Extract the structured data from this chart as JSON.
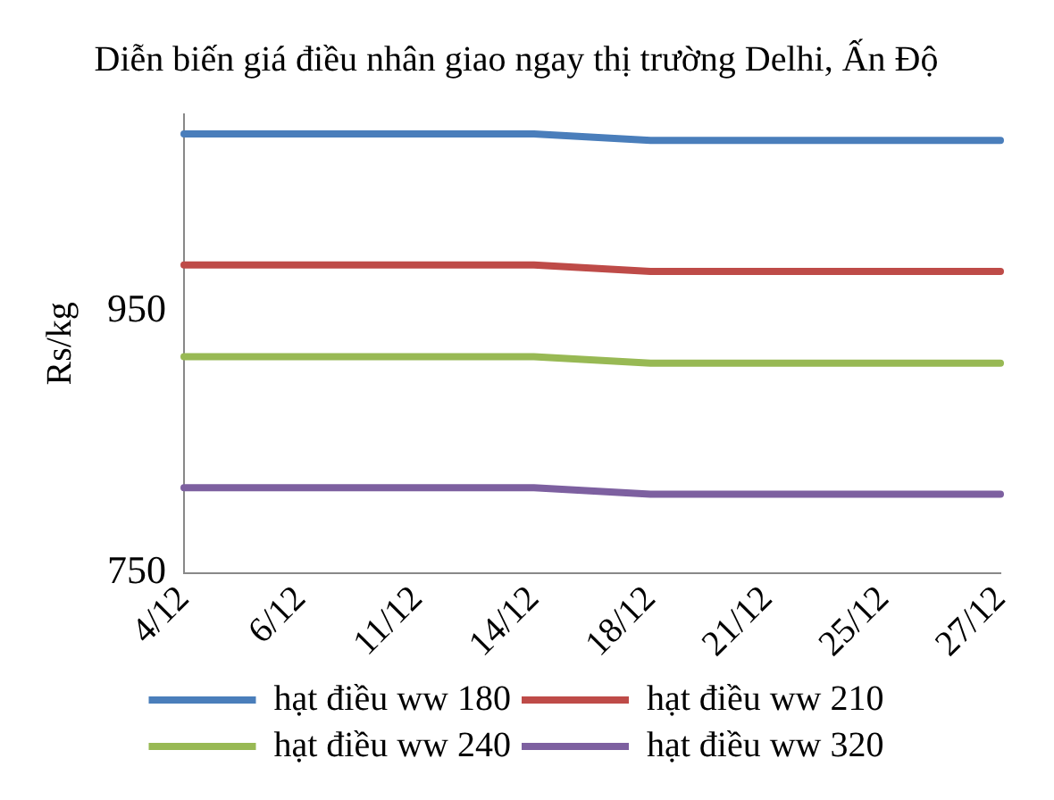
{
  "chart_data": {
    "type": "line",
    "title": "Diễn biến giá điều nhân giao ngay thị trường Delhi, Ấn Độ",
    "ylabel": "Rs/kg",
    "categories": [
      "4/12",
      "6/12",
      "11/12",
      "14/12",
      "18/12",
      "21/12",
      "25/12",
      "27/12"
    ],
    "series": [
      {
        "name": "hạt điều ww 180",
        "color": "#4a7ebb",
        "values": [
          1085,
          1085,
          1085,
          1085,
          1080,
          1080,
          1080,
          1080
        ]
      },
      {
        "name": "hạt điều ww 210",
        "color": "#be4b48",
        "values": [
          985,
          985,
          985,
          985,
          980,
          980,
          980,
          980
        ]
      },
      {
        "name": "hạt điều ww 240",
        "color": "#98b954",
        "values": [
          915,
          915,
          915,
          915,
          910,
          910,
          910,
          910
        ]
      },
      {
        "name": "hạt điều ww 320",
        "color": "#7d60a0",
        "values": [
          815,
          815,
          815,
          815,
          810,
          810,
          810,
          810
        ]
      }
    ],
    "ylim": [
      750,
      1100
    ],
    "yticks": [
      750,
      950
    ],
    "grid": false,
    "legend": "bottom",
    "marker": "none",
    "line_style": "solid"
  }
}
